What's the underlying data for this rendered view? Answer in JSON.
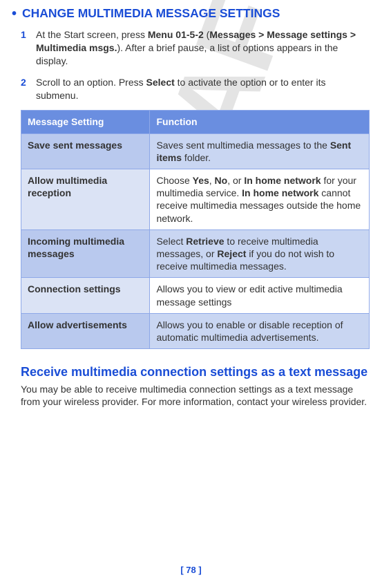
{
  "watermark": "DRAFT",
  "section_title": "CHANGE MULTIMEDIA MESSAGE SETTINGS",
  "steps": [
    {
      "num": "1",
      "parts": [
        {
          "t": "At the Start screen, press ",
          "b": false
        },
        {
          "t": "Menu 01-5-2",
          "b": true
        },
        {
          "t": " (",
          "b": false
        },
        {
          "t": "Messages > Message settings > Multimedia msgs.",
          "b": true
        },
        {
          "t": "). After a brief pause, a list of options appears in the display.",
          "b": false
        }
      ]
    },
    {
      "num": "2",
      "parts": [
        {
          "t": "Scroll to an option. Press ",
          "b": false
        },
        {
          "t": "Select",
          "b": true
        },
        {
          "t": " to activate the option or to enter its submenu.",
          "b": false
        }
      ]
    }
  ],
  "table": {
    "headers": [
      "Message Setting",
      "Function"
    ],
    "rows": [
      {
        "alt": true,
        "setting": "Save sent messages",
        "func": [
          {
            "t": "Saves sent multimedia messages to the ",
            "b": false
          },
          {
            "t": "Sent items",
            "b": true
          },
          {
            "t": " folder.",
            "b": false
          }
        ]
      },
      {
        "alt": false,
        "setting": "Allow multimedia reception",
        "func": [
          {
            "t": "Choose ",
            "b": false
          },
          {
            "t": "Yes",
            "b": true
          },
          {
            "t": ", ",
            "b": false
          },
          {
            "t": "No",
            "b": true
          },
          {
            "t": ", or ",
            "b": false
          },
          {
            "t": "In home network",
            "b": true
          },
          {
            "t": " for your multimedia service. ",
            "b": false
          },
          {
            "t": "In home network",
            "b": true
          },
          {
            "t": " cannot receive multimedia messages outside the home network.",
            "b": false
          }
        ]
      },
      {
        "alt": true,
        "setting": "Incoming multimedia messages",
        "func": [
          {
            "t": "Select ",
            "b": false
          },
          {
            "t": "Retrieve",
            "b": true
          },
          {
            "t": " to receive multimedia messages, or ",
            "b": false
          },
          {
            "t": "Reject",
            "b": true
          },
          {
            "t": " if you do not wish to receive multimedia messages.",
            "b": false
          }
        ]
      },
      {
        "alt": false,
        "setting": "Connection settings",
        "func": [
          {
            "t": "Allows you to view or edit active multimedia message settings",
            "b": false
          }
        ]
      },
      {
        "alt": true,
        "setting": "Allow advertisements",
        "func": [
          {
            "t": "Allows you to enable or disable reception of automatic multimedia advertisements.",
            "b": false
          }
        ]
      }
    ]
  },
  "sub_heading": "Receive multimedia connection settings as a text message",
  "body_para": "You may be able to receive multimedia connection settings as a text message from your wireless provider. For more information, contact your wireless provider.",
  "page_num": "[ 78 ]"
}
